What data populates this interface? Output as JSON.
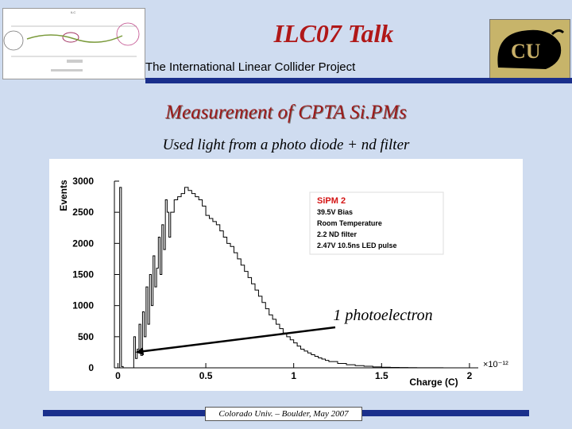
{
  "slide": {
    "title": "ILC07 Talk",
    "subtitle": "The International Linear Collider Project",
    "heading": "Measurement of CPTA Si.PMs",
    "caption": "Used light from a photo diode + nd filter",
    "footer": "Colorado Univ. – Boulder, May 2007",
    "colors": {
      "title": "#b01818",
      "bar": "#1a2f8c",
      "background": "#cfdcf0"
    }
  },
  "images": {
    "thumbnail": "detector-layout-thumbnail",
    "logo": "cu-buffalo-logo"
  },
  "chart_data": {
    "type": "line",
    "title": "",
    "xlabel": "Charge (C)",
    "ylabel": "Events",
    "x_exponent_label": "×10⁻¹²",
    "xlim": [
      -0.02,
      2.05
    ],
    "ylim": [
      0,
      3000
    ],
    "xticks": [
      "0",
      "0.5",
      "1",
      "1.5",
      "2"
    ],
    "yticks": [
      "0",
      "500",
      "1000",
      "1500",
      "2000",
      "2500",
      "3000"
    ],
    "xtick_values": [
      0,
      0.5,
      1,
      1.5,
      2
    ],
    "ytick_values": [
      0,
      500,
      1000,
      1500,
      2000,
      2500,
      3000
    ],
    "grid": false,
    "annotation": "1 photoelectron",
    "annotation_target": [
      0.1,
      250
    ],
    "legend_box": [
      "SiPM 2",
      "39.5V Bias",
      "Room Temperature",
      "2.2 ND filter",
      "2.47V 10.5ns LED pulse"
    ],
    "series": [
      {
        "x": [
          0.0,
          0.01,
          0.02,
          0.03,
          0.04,
          0.05,
          0.06,
          0.07,
          0.08,
          0.09,
          0.1,
          0.11,
          0.12,
          0.13,
          0.14,
          0.15,
          0.16,
          0.17,
          0.18,
          0.19,
          0.2,
          0.21,
          0.22,
          0.23,
          0.24,
          0.25,
          0.26,
          0.27,
          0.28,
          0.29,
          0.3,
          0.32,
          0.34,
          0.36,
          0.38,
          0.4,
          0.42,
          0.44,
          0.46,
          0.48,
          0.5,
          0.52,
          0.54,
          0.56,
          0.58,
          0.6,
          0.62,
          0.64,
          0.66,
          0.68,
          0.7,
          0.72,
          0.74,
          0.76,
          0.78,
          0.8,
          0.82,
          0.84,
          0.86,
          0.88,
          0.9,
          0.92,
          0.94,
          0.96,
          0.98,
          1.0,
          1.02,
          1.04,
          1.06,
          1.08,
          1.1,
          1.12,
          1.14,
          1.16,
          1.18,
          1.2,
          1.25,
          1.3,
          1.35,
          1.4,
          1.45,
          1.5,
          1.55,
          1.6,
          1.65,
          1.7,
          1.75,
          1.8,
          1.85,
          1.9,
          1.95,
          2.0
        ],
        "y": [
          0,
          2900,
          20,
          0,
          0,
          0,
          0,
          0,
          0,
          500,
          150,
          300,
          700,
          200,
          900,
          500,
          1300,
          700,
          1500,
          1000,
          1800,
          1300,
          1600,
          2100,
          1500,
          2300,
          1900,
          2700,
          2500,
          2100,
          2500,
          2700,
          2750,
          2800,
          2900,
          2850,
          2800,
          2750,
          2700,
          2600,
          2450,
          2400,
          2350,
          2300,
          2200,
          2100,
          2000,
          1950,
          1850,
          1750,
          1650,
          1550,
          1450,
          1350,
          1250,
          1150,
          1050,
          950,
          850,
          780,
          700,
          630,
          560,
          500,
          450,
          400,
          350,
          300,
          270,
          240,
          210,
          185,
          160,
          140,
          120,
          100,
          70,
          50,
          35,
          25,
          15,
          10,
          7,
          5,
          3,
          2,
          1,
          1,
          0,
          0,
          0,
          0
        ]
      }
    ]
  }
}
